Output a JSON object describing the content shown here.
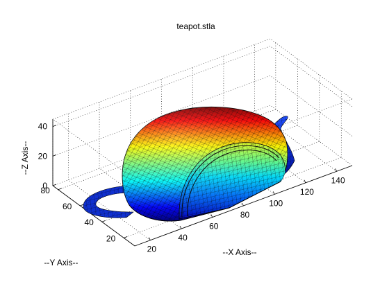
{
  "chart_data": {
    "type": "3d-surface",
    "title": "teapot.stla",
    "xlabel": "--X Axis--",
    "ylabel": "--Y Axis--",
    "zlabel": "--Z Axis--",
    "x_ticks": [
      20,
      40,
      60,
      80,
      100,
      120,
      140
    ],
    "y_ticks": [
      20,
      40,
      60,
      80
    ],
    "z_ticks": [
      0,
      20,
      40
    ],
    "xlim": [
      10,
      150
    ],
    "ylim": [
      10,
      85
    ],
    "zlim": [
      0,
      45
    ],
    "grid": true,
    "colormap": "jet",
    "edge_color": "#000000",
    "surface": "teapot"
  }
}
